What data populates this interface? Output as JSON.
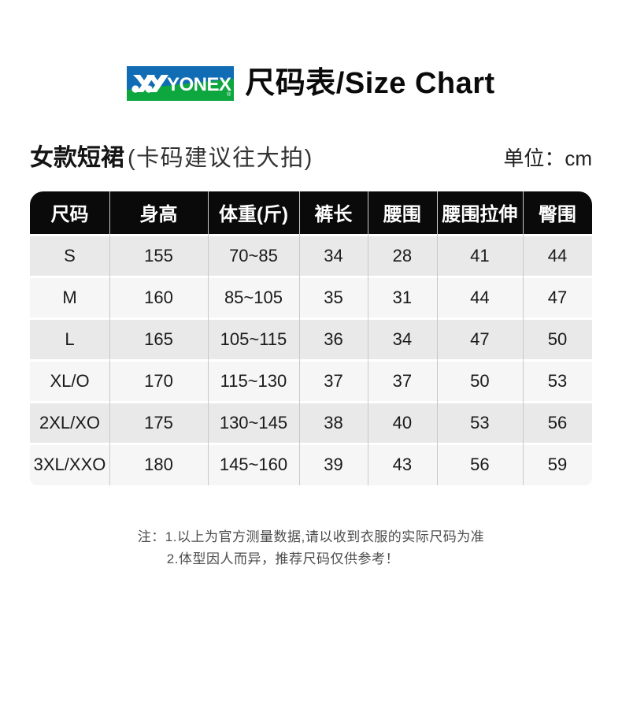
{
  "header": {
    "logo_text": "YONEX",
    "logo_registered": "®",
    "logo_colors": {
      "blue": "#0f6cb5",
      "green": "#0da63f",
      "mark": "#ffffff"
    },
    "title": "尺码表/Size Chart"
  },
  "subtitle": {
    "product": "女款短裙",
    "hint": "(卡码建议往大拍)",
    "unit": "单位：cm"
  },
  "table": {
    "headers": [
      "尺码",
      "身高",
      "体重(斤)",
      "裤长",
      "腰围",
      "腰围拉伸",
      "臀围"
    ],
    "rows": [
      [
        "S",
        "155",
        "70~85",
        "34",
        "28",
        "41",
        "44"
      ],
      [
        "M",
        "160",
        "85~105",
        "35",
        "31",
        "44",
        "47"
      ],
      [
        "L",
        "165",
        "105~115",
        "36",
        "34",
        "47",
        "50"
      ],
      [
        "XL/O",
        "170",
        "115~130",
        "37",
        "37",
        "50",
        "53"
      ],
      [
        "2XL/XO",
        "175",
        "130~145",
        "38",
        "40",
        "53",
        "56"
      ],
      [
        "3XL/XXO",
        "180",
        "145~160",
        "39",
        "43",
        "56",
        "59"
      ]
    ],
    "colors": {
      "header_bg": "#0a0a0a",
      "header_text": "#ffffff",
      "row_odd": "#e9e9e9",
      "row_even": "#f6f6f6",
      "divider": "#c9c9c9"
    }
  },
  "notes": {
    "line1": "注：1.以上为官方测量数据,请以收到衣服的实际尺码为准",
    "line2": "2.体型因人而异，推荐尺码仅供参考！"
  }
}
